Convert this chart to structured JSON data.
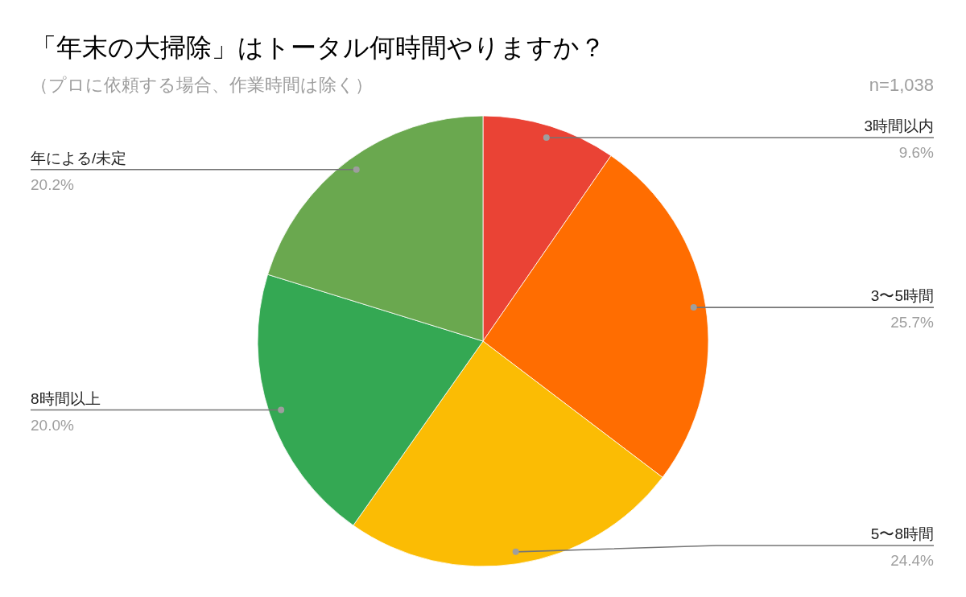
{
  "chart_data": {
    "type": "pie",
    "title": "「年末の大掃除」はトータル何時間やりますか？",
    "subtitle": "（プロに依頼する場合、作業時間は除く）",
    "annotations": [
      "n=1,038"
    ],
    "categories": [
      "3時間以内",
      "3〜5時間",
      "5〜8時間",
      "8時間以上",
      "年による/未定"
    ],
    "values": [
      9.6,
      25.7,
      24.4,
      20.0,
      20.2
    ],
    "colors": [
      "#ea4335",
      "#ff6d01",
      "#fbbc04",
      "#34a853",
      "#6aa84f"
    ],
    "value_labels": [
      "9.6%",
      "25.7%",
      "24.4%",
      "20.0%",
      "20.2%"
    ]
  }
}
